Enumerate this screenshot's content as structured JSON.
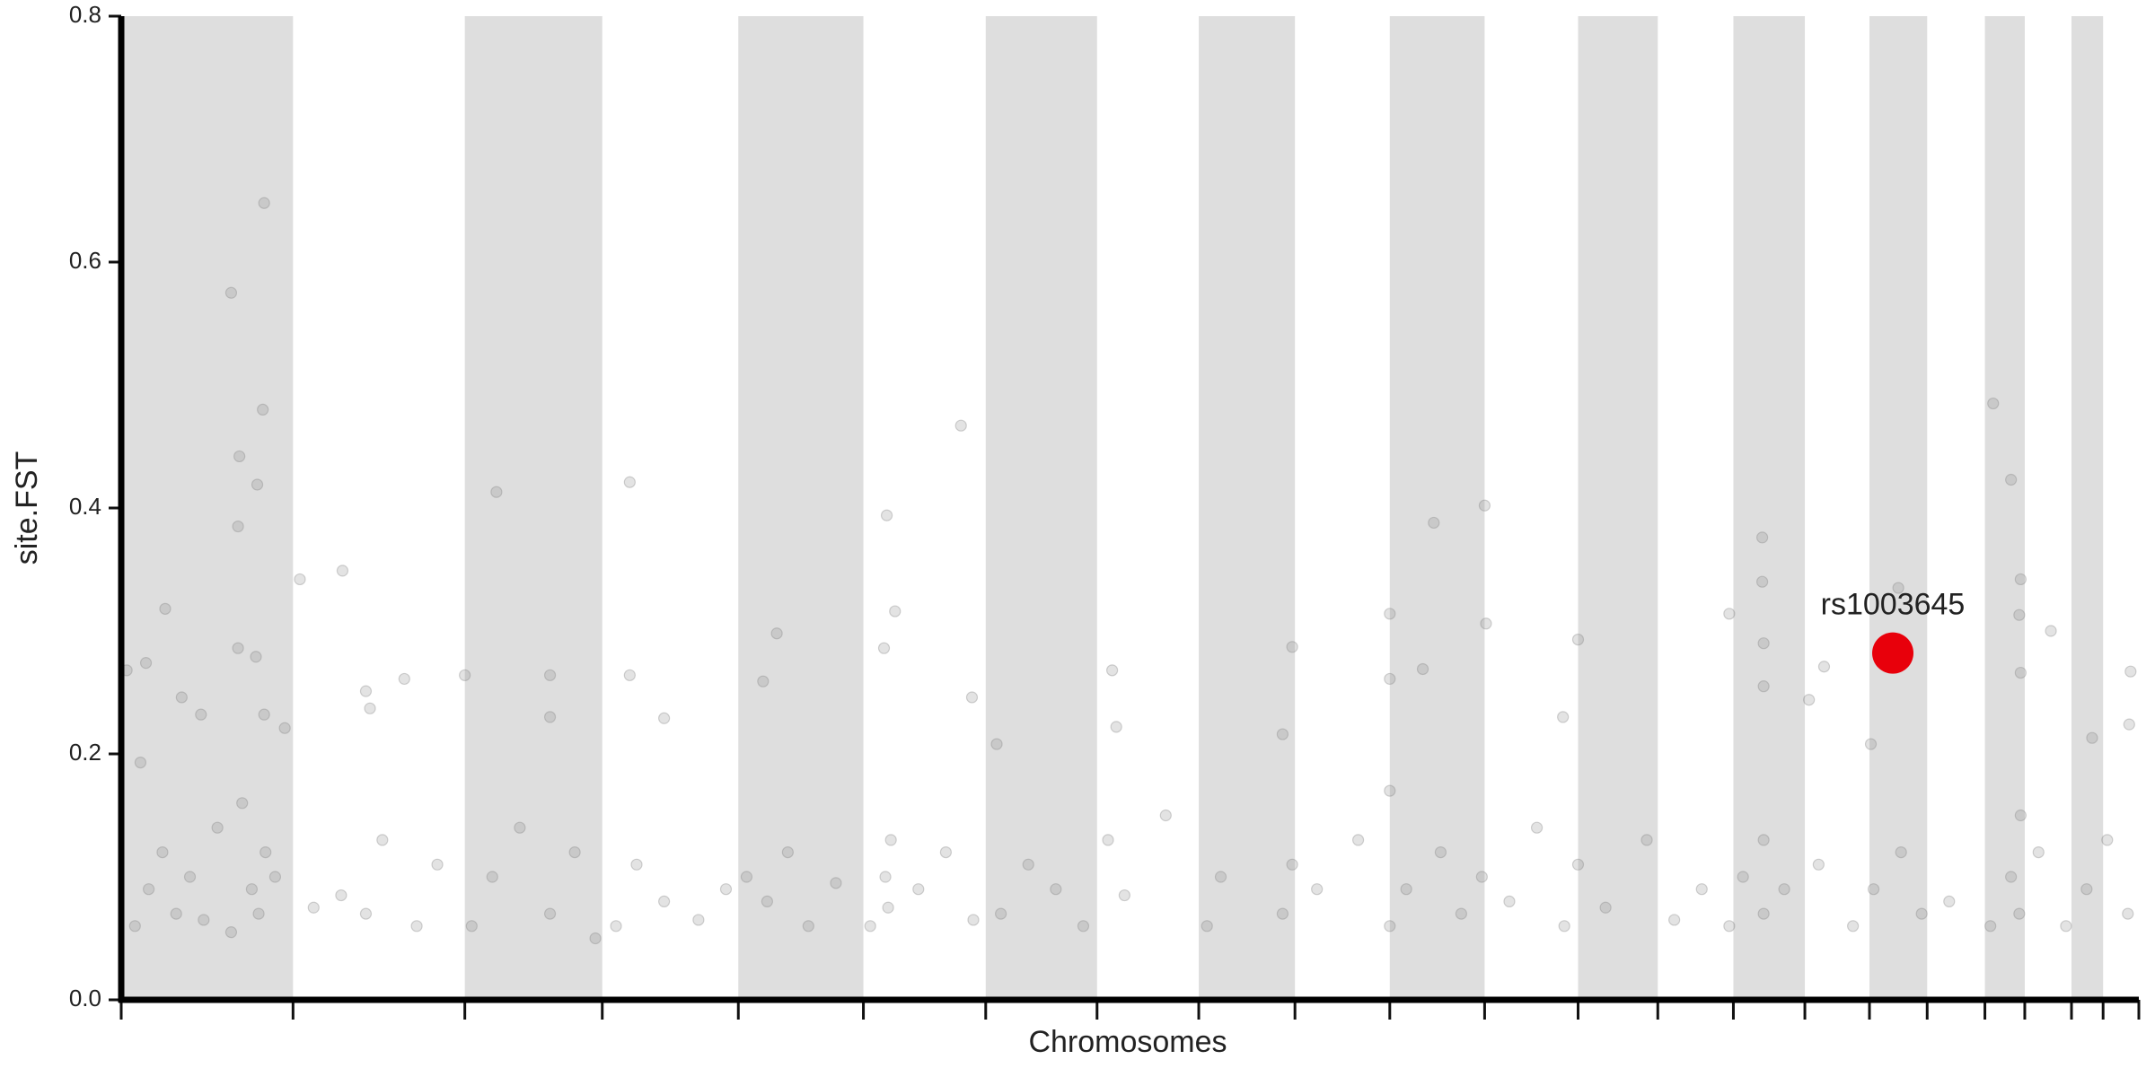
{
  "chart_data": {
    "type": "scatter",
    "xlabel": "Chromosomes",
    "ylabel": "site.FST",
    "xlim": [
      0,
      1468
    ],
    "xticks": [
      0,
      125,
      250,
      350,
      449,
      540,
      629,
      710,
      784,
      854,
      923,
      992,
      1060,
      1118,
      1173,
      1225,
      1272,
      1314,
      1356,
      1385,
      1419,
      1442,
      1468
    ],
    "ylim": [
      0,
      0.8
    ],
    "yticks": [
      {
        "value": 0,
        "label": "0.0"
      },
      0.2,
      0.4,
      0.6,
      0.8
    ],
    "shaded_bands": true,
    "band_color": "#dedede",
    "points": {
      "color": "#808080",
      "x": [
        80,
        104,
        103,
        86,
        99,
        85,
        32,
        4,
        18,
        14,
        44,
        58,
        85,
        98,
        104,
        119,
        130,
        161,
        178,
        206,
        181,
        273,
        250,
        312,
        312,
        370,
        370,
        395,
        477,
        467,
        557,
        563,
        555,
        611,
        619,
        637,
        721,
        724,
        852,
        845,
        923,
        923,
        955,
        992,
        993,
        947,
        1060,
        1049,
        1170,
        1194,
        1194,
        1195,
        1195,
        1239,
        1228,
        1273,
        1293,
        1362,
        1375,
        1382,
        1381,
        1382,
        1404,
        1434,
        1462,
        1461,
        10,
        20,
        30,
        40,
        50,
        60,
        70,
        80,
        88,
        95,
        100,
        105,
        112,
        140,
        160,
        178,
        190,
        215,
        230,
        255,
        270,
        290,
        312,
        330,
        345,
        360,
        375,
        395,
        420,
        440,
        455,
        470,
        485,
        500,
        520,
        545,
        556,
        560,
        558,
        580,
        600,
        620,
        640,
        660,
        680,
        700,
        718,
        730,
        760,
        790,
        800,
        845,
        852,
        870,
        900,
        923,
        923,
        935,
        960,
        975,
        990,
        1010,
        1030,
        1050,
        1060,
        1080,
        1110,
        1130,
        1150,
        1170,
        1180,
        1195,
        1195,
        1210,
        1235,
        1260,
        1275,
        1295,
        1310,
        1330,
        1360,
        1375,
        1381,
        1382,
        1395,
        1415,
        1430,
        1445,
        1460
      ],
      "y": [
        0.575,
        0.648,
        0.48,
        0.442,
        0.419,
        0.385,
        0.318,
        0.268,
        0.274,
        0.193,
        0.246,
        0.232,
        0.286,
        0.279,
        0.232,
        0.221,
        0.342,
        0.349,
        0.251,
        0.261,
        0.237,
        0.413,
        0.264,
        0.264,
        0.23,
        0.421,
        0.264,
        0.229,
        0.298,
        0.259,
        0.394,
        0.316,
        0.286,
        0.467,
        0.246,
        0.208,
        0.268,
        0.222,
        0.287,
        0.216,
        0.314,
        0.261,
        0.388,
        0.402,
        0.306,
        0.269,
        0.293,
        0.23,
        0.314,
        0.376,
        0.34,
        0.29,
        0.255,
        0.271,
        0.244,
        0.208,
        0.335,
        0.485,
        0.423,
        0.342,
        0.313,
        0.266,
        0.3,
        0.213,
        0.267,
        0.224,
        0.06,
        0.09,
        0.12,
        0.07,
        0.1,
        0.065,
        0.14,
        0.055,
        0.16,
        0.09,
        0.07,
        0.12,
        0.1,
        0.075,
        0.085,
        0.07,
        0.13,
        0.06,
        0.11,
        0.06,
        0.1,
        0.14,
        0.07,
        0.12,
        0.05,
        0.06,
        0.11,
        0.08,
        0.065,
        0.09,
        0.1,
        0.08,
        0.12,
        0.06,
        0.095,
        0.06,
        0.1,
        0.13,
        0.075,
        0.09,
        0.12,
        0.065,
        0.07,
        0.11,
        0.09,
        0.06,
        0.13,
        0.085,
        0.15,
        0.06,
        0.1,
        0.07,
        0.11,
        0.09,
        0.13,
        0.06,
        0.17,
        0.09,
        0.12,
        0.07,
        0.1,
        0.08,
        0.14,
        0.06,
        0.11,
        0.075,
        0.13,
        0.065,
        0.09,
        0.06,
        0.1,
        0.07,
        0.13,
        0.09,
        0.11,
        0.06,
        0.09,
        0.12,
        0.07,
        0.08,
        0.06,
        0.1,
        0.07,
        0.15,
        0.12,
        0.06,
        0.09,
        0.13,
        0.07
      ]
    },
    "highlight": {
      "name": "rs1003645",
      "x": 1289,
      "y": 0.282,
      "color": "#e8000b"
    }
  }
}
